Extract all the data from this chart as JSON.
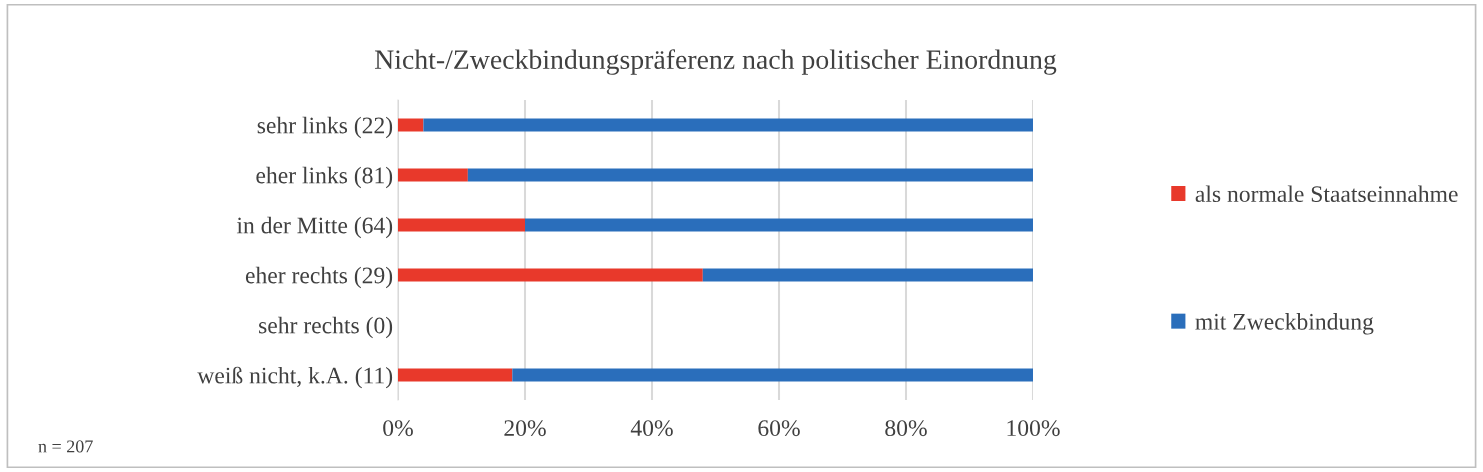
{
  "chart_data": {
    "type": "bar",
    "orientation": "horizontal",
    "stacked": true,
    "title": "Nicht-/Zweckbindungspräferenz nach politischer Einordnung",
    "categories": [
      "sehr links (22)",
      "eher links (81)",
      "in der Mitte (64)",
      "eher rechts (29)",
      "sehr rechts (0)",
      "weiß nicht, k.A. (11)"
    ],
    "series": [
      {
        "name": "als normale Staatseinnahme",
        "color": "#e8392b",
        "values": [
          4,
          11,
          20,
          48,
          null,
          18
        ]
      },
      {
        "name": "mit Zweckbindung",
        "color": "#2a6ebb",
        "values": [
          96,
          89,
          80,
          52,
          null,
          82
        ]
      }
    ],
    "xlim": [
      0,
      100
    ],
    "xticks": [
      {
        "value": 0,
        "label": "0%"
      },
      {
        "value": 20,
        "label": "20%"
      },
      {
        "value": 40,
        "label": "40%"
      },
      {
        "value": 60,
        "label": "60%"
      },
      {
        "value": 80,
        "label": "80%"
      },
      {
        "value": 100,
        "label": "100%"
      }
    ],
    "grid": "x",
    "legend": "right",
    "annotations": [
      "n = 207"
    ]
  }
}
